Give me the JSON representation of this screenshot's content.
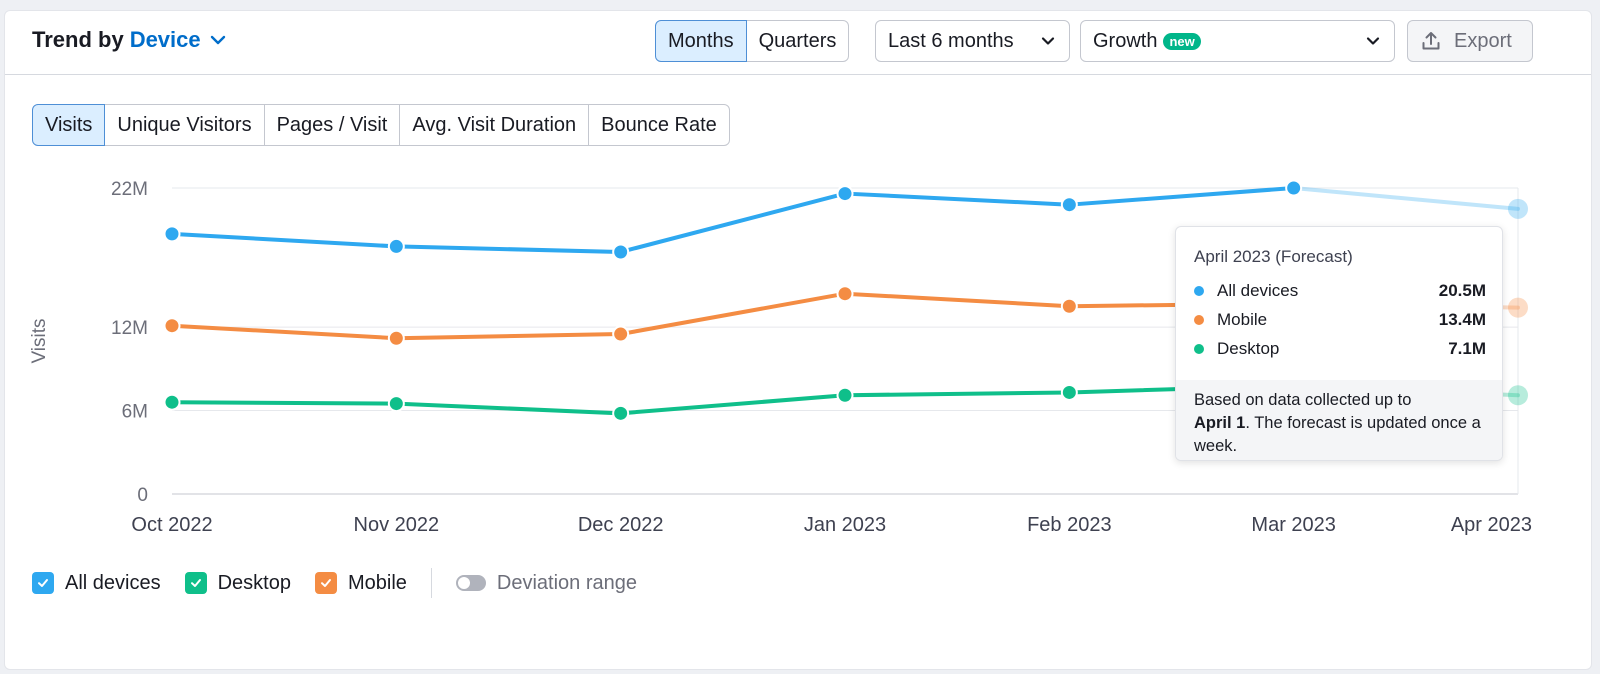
{
  "header": {
    "title_prefix": "Trend by",
    "title_accent": "Device",
    "period_tabs": [
      "Months",
      "Quarters"
    ],
    "period_active": "Months",
    "range_select": "Last 6 months",
    "metric_select": "Growth",
    "metric_badge": "new",
    "export_label": "Export"
  },
  "metric_tabs": {
    "items": [
      "Visits",
      "Unique Visitors",
      "Pages / Visit",
      "Avg. Visit Duration",
      "Bounce Rate"
    ],
    "active": "Visits"
  },
  "tooltip": {
    "title": "April 2023 (Forecast)",
    "rows": [
      {
        "label": "All devices",
        "value": "20.5M"
      },
      {
        "label": "Mobile",
        "value": "13.4M"
      },
      {
        "label": "Desktop",
        "value": "7.1M"
      }
    ],
    "note_pre": "Based on data collected up to",
    "note_bold": "April 1",
    "note_post": ". The forecast is updated once a week."
  },
  "legend": {
    "items": [
      "All devices",
      "Desktop",
      "Mobile"
    ],
    "toggle_label": "Deviation range"
  },
  "colors": {
    "all_devices": "#2ea8f0",
    "mobile": "#f48c43",
    "desktop": "#0fbf8a",
    "accent": "#006dca"
  },
  "chart_data": {
    "type": "line",
    "ylabel": "Visits",
    "categories": [
      "Oct 2022",
      "Nov 2022",
      "Dec 2022",
      "Jan 2023",
      "Feb 2023",
      "Mar 2023",
      "Apr 2023"
    ],
    "yticks": [
      0,
      6,
      12,
      22
    ],
    "ytick_labels": [
      "0",
      "6M",
      "12M",
      "22M"
    ],
    "ylim": [
      0,
      22
    ],
    "forecast_from_index": 5,
    "series": [
      {
        "name": "All devices",
        "key": "all_devices",
        "values": [
          18.7,
          17.8,
          17.4,
          21.6,
          20.8,
          22.0,
          20.5
        ]
      },
      {
        "name": "Mobile",
        "key": "mobile",
        "values": [
          12.1,
          11.2,
          11.5,
          14.4,
          13.5,
          13.7,
          13.4
        ]
      },
      {
        "name": "Desktop",
        "key": "desktop",
        "values": [
          6.6,
          6.5,
          5.8,
          7.1,
          7.3,
          7.8,
          7.1
        ]
      }
    ],
    "grid": true,
    "legend": "bottom-left"
  }
}
